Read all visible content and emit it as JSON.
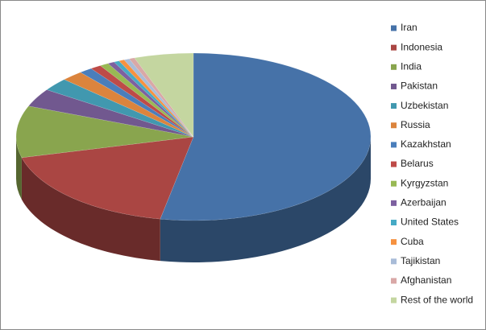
{
  "chart_data": {
    "type": "pie3d",
    "legend": "right",
    "categories": [
      "Iran",
      "Indonesia",
      "India",
      "Pakistan",
      "Uzbekistan",
      "Russia",
      "Kazakhstan",
      "Belarus",
      "Kyrgyzstan",
      "Azerbaijan",
      "United States",
      "Cuba",
      "Tajikistan",
      "Afghanistan",
      "Rest of the world"
    ],
    "values": [
      53,
      18,
      10,
      3.5,
      2.5,
      2,
      1.2,
      1,
      0.8,
      0.6,
      0.5,
      0.5,
      0.5,
      0.5,
      5.4
    ],
    "colors": [
      "#4672a8",
      "#aa4643",
      "#89a54e",
      "#71588f",
      "#4198af",
      "#db843d",
      "#4a7ebb",
      "#be4b48",
      "#98b954",
      "#7d60a0",
      "#46aac5",
      "#f69240",
      "#a9bcd8",
      "#d9a8a7",
      "#c4d6a0"
    ]
  }
}
